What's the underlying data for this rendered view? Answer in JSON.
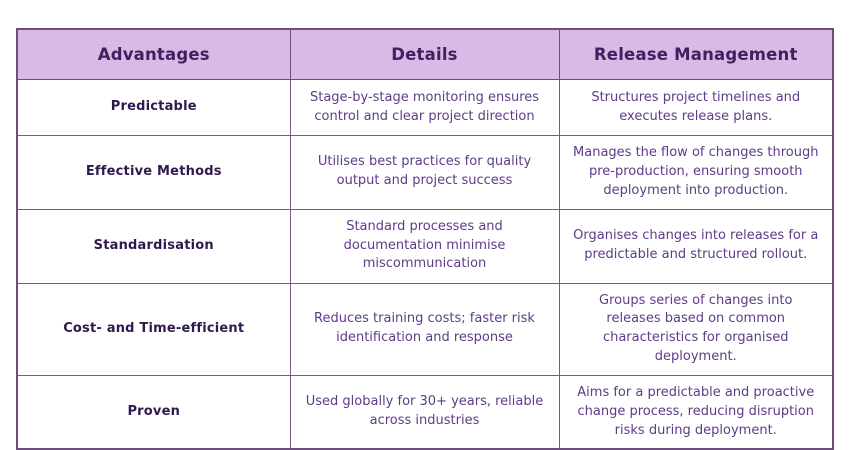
{
  "chart_data": {
    "type": "table",
    "columns": [
      "Advantages",
      "Details",
      "Release Management"
    ],
    "rows": [
      {
        "advantage": "Predictable",
        "details": "Stage-by-stage monitoring ensures control and clear project direction",
        "release_management": "Structures project timelines and executes release plans."
      },
      {
        "advantage": "Effective Methods",
        "details": "Utilises best practices for quality output and project success",
        "release_management": "Manages the flow of changes through pre-production, ensuring smooth deployment into production."
      },
      {
        "advantage": "Standardisation",
        "details": "Standard processes and documentation minimise miscommunication",
        "release_management": "Organises changes into releases for a predictable and structured rollout."
      },
      {
        "advantage": "Cost- and Time-efficient",
        "details": "Reduces training costs; faster risk identification and response",
        "release_management": "Groups series of changes into releases based on common characteristics for organised deployment."
      },
      {
        "advantage": "Proven",
        "details": "Used globally for 30+ years, reliable across industries",
        "release_management": "Aims for a predictable and proactive change process, reducing disruption risks during deployment."
      }
    ],
    "layout": {
      "legend": "none",
      "grid": "full table borders"
    }
  },
  "colors": {
    "header_background": "#d9b9e6",
    "header_text": "#3f2160",
    "advantage_text": "#2f1a4d",
    "body_text": "#5e3c88",
    "outer_border": "#6e4c7c",
    "inner_border": "#7b5a88",
    "row_background": "#ffffff",
    "page_background": "#ffffff"
  }
}
